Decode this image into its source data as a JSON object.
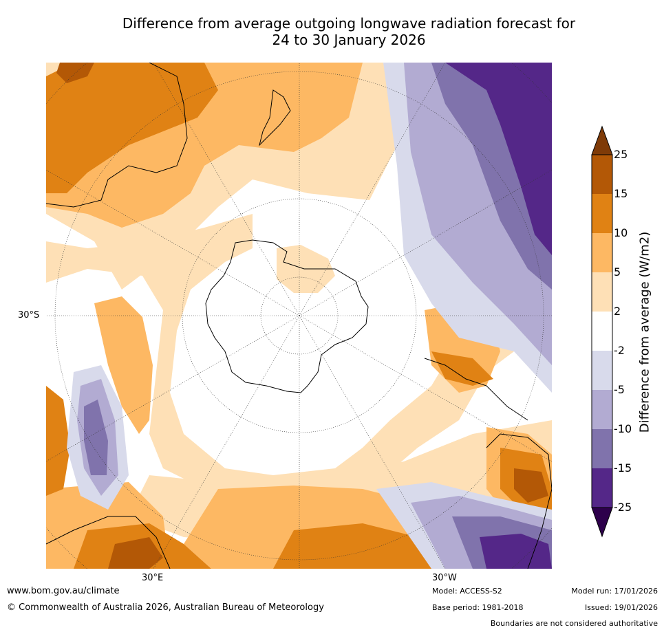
{
  "title": {
    "line1": "Difference from average outgoing longwave radiation forecast for",
    "line2": "24 to 30 January 2026"
  },
  "map": {
    "projection": "south-polar stereographic",
    "axis_labels": {
      "left": "30°S",
      "bottom_left": "30°E",
      "bottom_right": "30°W"
    }
  },
  "colorbar": {
    "label": "Difference from average (W/m2)",
    "ticks": [
      "25",
      "15",
      "10",
      "5",
      "2",
      "-2",
      "-5",
      "-10",
      "-15",
      "-25"
    ],
    "colors": {
      "gt25": "#7f3b08",
      "15_25": "#b35806",
      "10_15": "#e08214",
      "5_10": "#fdb863",
      "2_5": "#fee0b6",
      "m2_2": "#ffffff",
      "m5_m2": "#d8daeb",
      "m10_m5": "#b2abd2",
      "m15_m10": "#8073ac",
      "m25_m15": "#542788",
      "lt_m25": "#2d004b"
    }
  },
  "footer": {
    "url": "www.bom.gov.au/climate",
    "copyright": "© Commonwealth of Australia 2026, Australian Bureau of Meteorology",
    "model": "Model: ACCESS-S2",
    "base_period": "Base period: 1981-2018",
    "model_run": "Model run: 17/01/2026",
    "issued": "Issued: 19/01/2026",
    "disclaimer": "Boundaries are not considered authoritative"
  }
}
